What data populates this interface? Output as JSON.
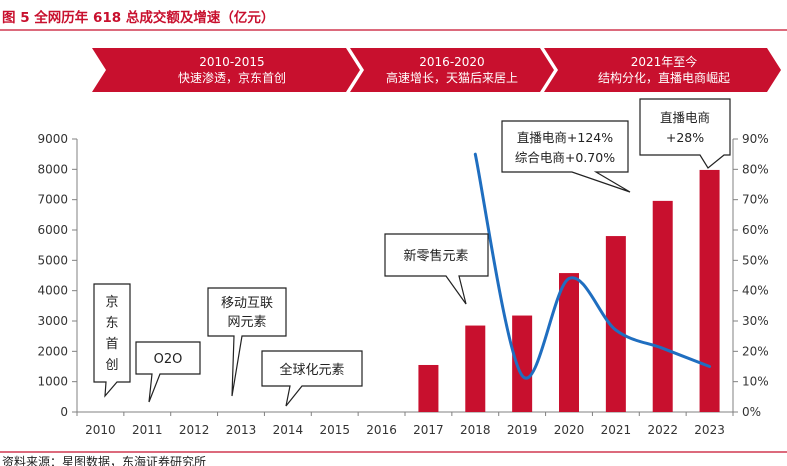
{
  "figure": {
    "title": "图 5 全网历年 618 总成交额及增速（亿元）",
    "source": "资料来源：星图数据，东海证券研究所"
  },
  "colors": {
    "accent_red": "#c8102e",
    "line_blue": "#1f6ec0",
    "axis_gray": "#808080",
    "text": "#222222"
  },
  "phases": [
    {
      "period": "2010-2015",
      "desc": "快速渗透，京东首创"
    },
    {
      "period": "2016-2020",
      "desc": "高速增长，天猫后来居上"
    },
    {
      "period": "2021年至今",
      "desc": "结构分化，直播电商崛起"
    }
  ],
  "callouts": {
    "jd": [
      "京",
      "东",
      "首",
      "创"
    ],
    "o2o": "O2O",
    "mobile": [
      "移动互联",
      "网元素"
    ],
    "global": "全球化元素",
    "new_retail": "新零售元素",
    "y2022": [
      "直播电商+124%",
      "综合电商+0.70%"
    ],
    "y2023": [
      "直播电商",
      "+28%"
    ]
  },
  "chart_data": {
    "type": "bar",
    "categories": [
      "2010",
      "2011",
      "2012",
      "2013",
      "2014",
      "2015",
      "2016",
      "2017",
      "2018",
      "2019",
      "2020",
      "2021",
      "2022",
      "2023"
    ],
    "series": [
      {
        "name": "总成交额（亿元）",
        "type": "bar",
        "axis": "left",
        "values": [
          null,
          null,
          null,
          null,
          null,
          null,
          null,
          1550,
          2850,
          3180,
          4580,
          5800,
          6960,
          7980
        ]
      },
      {
        "name": "增速",
        "type": "line",
        "axis": "right",
        "values": [
          null,
          null,
          null,
          null,
          null,
          null,
          null,
          null,
          85,
          12,
          44,
          27,
          21,
          15
        ]
      }
    ],
    "y_left": {
      "min": 0,
      "max": 9000,
      "step": 1000,
      "ticks": [
        "0",
        "1000",
        "2000",
        "3000",
        "4000",
        "5000",
        "6000",
        "7000",
        "8000",
        "9000"
      ]
    },
    "y_right": {
      "min": 0,
      "max": 90,
      "step": 10,
      "ticks": [
        "0%",
        "10%",
        "20%",
        "30%",
        "40%",
        "50%",
        "60%",
        "70%",
        "80%",
        "90%"
      ]
    }
  }
}
